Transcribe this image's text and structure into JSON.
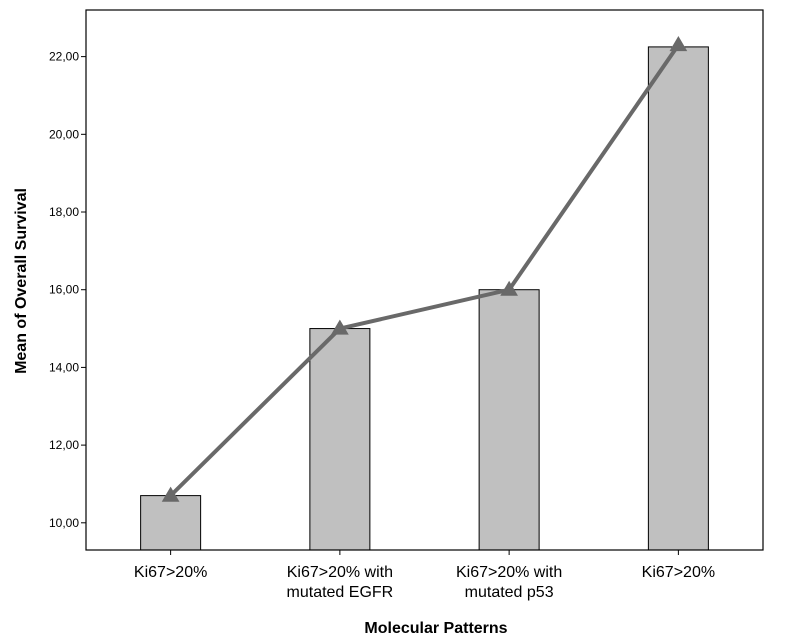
{
  "chart_data": {
    "type": "bar",
    "title": "",
    "xlabel": "Molecular Patterns",
    "ylabel": "Mean of Overall Survival",
    "categories": [
      [
        "Ki67>20%"
      ],
      [
        "Ki67>20% with",
        "mutated EGFR"
      ],
      [
        "Ki67>20% with",
        "mutated p53"
      ],
      [
        "Ki67>20%"
      ]
    ],
    "values": [
      10.7,
      15.0,
      16.0,
      22.25
    ],
    "line_values": [
      10.7,
      15.0,
      16.0,
      22.3
    ],
    "ylim": [
      9.3,
      23.2
    ],
    "yticks": [
      "10,00",
      "12,00",
      "14,00",
      "16,00",
      "18,00",
      "20,00",
      "22,00"
    ],
    "ytick_values": [
      10,
      12,
      14,
      16,
      18,
      20,
      22
    ],
    "grid": false,
    "legend": "none",
    "colors": {
      "bar_fill": "#c0c0c0",
      "bar_stroke": "#000000",
      "line": "#696969",
      "marker": "#696969",
      "axis": "#000000"
    }
  }
}
